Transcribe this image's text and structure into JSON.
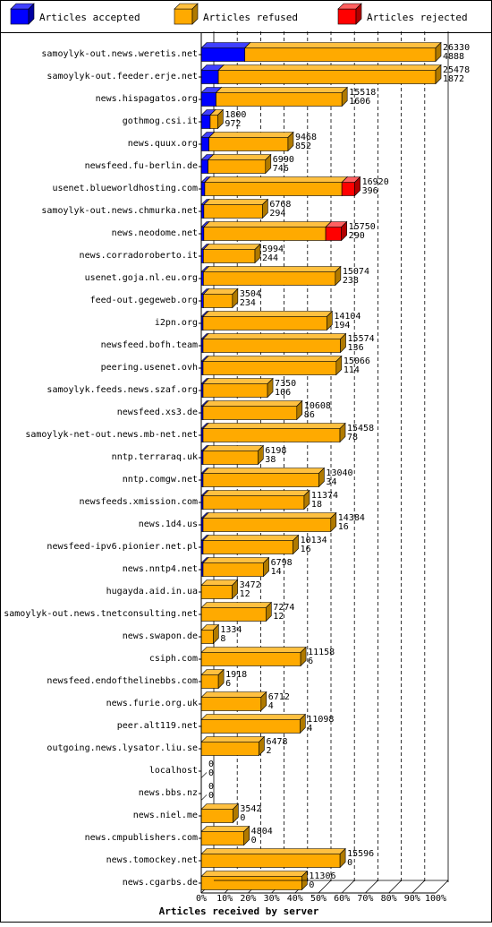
{
  "legend": [
    {
      "label": "Articles accepted",
      "color": "#0000ff",
      "side": "#0000a0",
      "top": "#4040ff"
    },
    {
      "label": "Articles refused",
      "color": "#ffaa00",
      "side": "#b07a00",
      "top": "#ffc040"
    },
    {
      "label": "Articles rejected",
      "color": "#ff0000",
      "side": "#b00000",
      "top": "#ff6060"
    }
  ],
  "chart_data": {
    "type": "bar",
    "orientation": "horizontal",
    "stacked": true,
    "title": "Articles received by server",
    "x_ticks": [
      "0%",
      "10%",
      "20%",
      "30%",
      "40%",
      "50%",
      "60%",
      "70%",
      "80%",
      "90%",
      "100%"
    ],
    "xlim": [
      0,
      100
    ],
    "grid": true,
    "legend_position": "top",
    "series_names": [
      "Articles accepted",
      "Articles refused",
      "Articles rejected"
    ],
    "rows": [
      {
        "server": "samoylyk-out.news.weretis.net",
        "total": "26330",
        "second": "4888",
        "pct": [
          18.6,
          81.4,
          0
        ]
      },
      {
        "server": "samoylyk-out.feeder.erje.net",
        "total": "25478",
        "second": "1872",
        "pct": [
          7.3,
          92.7,
          0
        ]
      },
      {
        "server": "news.hispagatos.org",
        "total": "15518",
        "second": "1606",
        "pct": [
          6.3,
          53.7,
          0
        ]
      },
      {
        "server": "gothmog.csi.it",
        "total": "1800",
        "second": "972",
        "pct": [
          3.8,
          3.2,
          0
        ]
      },
      {
        "server": "news.quux.org",
        "total": "9468",
        "second": "852",
        "pct": [
          3.3,
          33.7,
          0
        ]
      },
      {
        "server": "newsfeed.fu-berlin.de",
        "total": "6990",
        "second": "746",
        "pct": [
          2.9,
          24.5,
          0
        ]
      },
      {
        "server": "usenet.blueworldhosting.com",
        "total": "16920",
        "second": "396",
        "pct": [
          1.5,
          58.5,
          5.5
        ]
      },
      {
        "server": "samoylyk-out.news.chmurka.net",
        "total": "6768",
        "second": "294",
        "pct": [
          1.1,
          25.0,
          0
        ]
      },
      {
        "server": "news.neodome.net",
        "total": "15750",
        "second": "290",
        "pct": [
          1.1,
          52.0,
          6.7
        ]
      },
      {
        "server": "news.corradoroberto.it",
        "total": "5994",
        "second": "244",
        "pct": [
          0.9,
          22.0,
          0
        ]
      },
      {
        "server": "usenet.goja.nl.eu.org",
        "total": "15074",
        "second": "238",
        "pct": [
          0.9,
          56.3,
          0
        ]
      },
      {
        "server": "feed-out.gegeweb.org",
        "total": "3504",
        "second": "234",
        "pct": [
          0.9,
          12.4,
          0
        ]
      },
      {
        "server": "i2pn.org",
        "total": "14104",
        "second": "194",
        "pct": [
          0.7,
          52.8,
          0
        ]
      },
      {
        "server": "newsfeed.bofh.team",
        "total": "15574",
        "second": "136",
        "pct": [
          0.5,
          58.6,
          0
        ]
      },
      {
        "server": "peering.usenet.ovh",
        "total": "15066",
        "second": "114",
        "pct": [
          0.4,
          56.8,
          0
        ]
      },
      {
        "server": "samoylyk.feeds.news.szaf.org",
        "total": "7350",
        "second": "106",
        "pct": [
          0.4,
          27.5,
          0
        ]
      },
      {
        "server": "newsfeed.xs3.de",
        "total": "10608",
        "second": "86",
        "pct": [
          0.3,
          40.0,
          0
        ]
      },
      {
        "server": "samoylyk-net-out.news.mb-net.net",
        "total": "15458",
        "second": "78",
        "pct": [
          0.3,
          58.4,
          0
        ]
      },
      {
        "server": "nntp.terraraq.uk",
        "total": "6198",
        "second": "38",
        "pct": [
          0.1,
          23.4,
          0
        ]
      },
      {
        "server": "nntp.comgw.net",
        "total": "13040",
        "second": "34",
        "pct": [
          0.1,
          49.4,
          0
        ]
      },
      {
        "server": "newsfeeds.xmission.com",
        "total": "11374",
        "second": "18",
        "pct": [
          0.1,
          43.1,
          0
        ]
      },
      {
        "server": "news.1d4.us",
        "total": "14384",
        "second": "16",
        "pct": [
          0.1,
          54.5,
          0
        ]
      },
      {
        "server": "newsfeed-ipv6.pionier.net.pl",
        "total": "10134",
        "second": "16",
        "pct": [
          0.1,
          38.4,
          0
        ]
      },
      {
        "server": "news.nntp4.net",
        "total": "6798",
        "second": "14",
        "pct": [
          0.1,
          25.8,
          0
        ]
      },
      {
        "server": "hugayda.aid.in.ua",
        "total": "3472",
        "second": "12",
        "pct": [
          0,
          13.2,
          0
        ]
      },
      {
        "server": "samoylyk-out.news.tnetconsulting.net",
        "total": "7274",
        "second": "12",
        "pct": [
          0,
          27.6,
          0
        ]
      },
      {
        "server": "news.swapon.de",
        "total": "1334",
        "second": "8",
        "pct": [
          0,
          5.1,
          0
        ]
      },
      {
        "server": "csiph.com",
        "total": "11158",
        "second": "6",
        "pct": [
          0,
          42.4,
          0
        ]
      },
      {
        "server": "newsfeed.endofthelinebbs.com",
        "total": "1918",
        "second": "6",
        "pct": [
          0,
          7.3,
          0
        ]
      },
      {
        "server": "news.furie.org.uk",
        "total": "6712",
        "second": "4",
        "pct": [
          0,
          25.5,
          0
        ]
      },
      {
        "server": "peer.alt119.net",
        "total": "11098",
        "second": "4",
        "pct": [
          0,
          42.1,
          0
        ]
      },
      {
        "server": "outgoing.news.lysator.liu.se",
        "total": "6478",
        "second": "2",
        "pct": [
          0,
          24.6,
          0
        ]
      },
      {
        "server": "localhost",
        "total": "0",
        "second": "0",
        "pct": [
          0,
          0,
          0
        ]
      },
      {
        "server": "news.bbs.nz",
        "total": "0",
        "second": "0",
        "pct": [
          0,
          0,
          0
        ]
      },
      {
        "server": "news.niel.me",
        "total": "3542",
        "second": "0",
        "pct": [
          0,
          13.5,
          0
        ]
      },
      {
        "server": "news.cmpublishers.com",
        "total": "4804",
        "second": "0",
        "pct": [
          0,
          18.2,
          0
        ]
      },
      {
        "server": "news.tomockey.net",
        "total": "15596",
        "second": "0",
        "pct": [
          0,
          59.2,
          0
        ]
      },
      {
        "server": "news.cgarbs.de",
        "total": "11306",
        "second": "0",
        "pct": [
          0,
          42.9,
          0
        ]
      }
    ]
  }
}
